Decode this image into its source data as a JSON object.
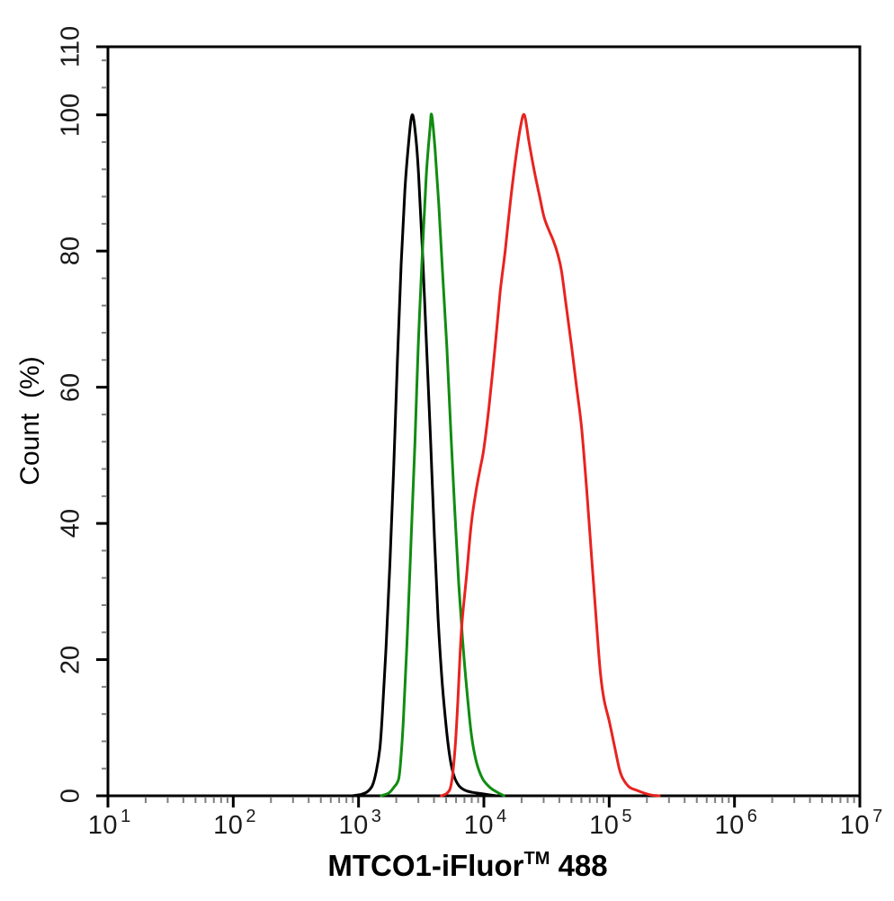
{
  "figure": {
    "background": "#ffffff",
    "axis_color": "#000000",
    "major_tick_color": "#000000",
    "minor_tick_color": "#7f7f7f"
  },
  "x_axis": {
    "title": "MTCO1-iFluor™ 488",
    "title_prefix": "MTCO1-iFluor",
    "title_tm": "TM",
    "title_suffix": " 488",
    "scale": "log10",
    "tick_base": "10",
    "tick_exponents": [
      "1",
      "2",
      "3",
      "4",
      "5",
      "6",
      "7"
    ]
  },
  "y_axis": {
    "title": "Count  (%)",
    "tick_labels": [
      "0",
      "20",
      "40",
      "60",
      "80",
      "100",
      "110"
    ],
    "tick_values": [
      0,
      20,
      40,
      60,
      80,
      100,
      110
    ],
    "minor_step": 4,
    "range": [
      0,
      110
    ]
  },
  "chart_data": {
    "type": "line",
    "title": "",
    "xlabel": "MTCO1-iFluor™ 488",
    "ylabel": "Count  (%)",
    "x_scale": "log10",
    "xlim_log10": [
      1,
      7
    ],
    "ylim": [
      0,
      110
    ],
    "grid": false,
    "legend": "none",
    "y_major_ticks": [
      0,
      20,
      40,
      60,
      80,
      100,
      110
    ],
    "y_minor_step": 4,
    "x_major_ticks_log10": [
      1,
      2,
      3,
      4,
      5,
      6,
      7
    ],
    "series": [
      {
        "name": "black-curve",
        "color": "#000000",
        "peak_x": 2700,
        "peak_y": 100,
        "points_log10x_count": [
          [
            2.95,
            0
          ],
          [
            3.02,
            0.2
          ],
          [
            3.07,
            0.6
          ],
          [
            3.11,
            1.5
          ],
          [
            3.14,
            3.5
          ],
          [
            3.17,
            7
          ],
          [
            3.19,
            12
          ],
          [
            3.22,
            22
          ],
          [
            3.25,
            34
          ],
          [
            3.28,
            48
          ],
          [
            3.31,
            64
          ],
          [
            3.34,
            78
          ],
          [
            3.37,
            89
          ],
          [
            3.4,
            96
          ],
          [
            3.428,
            100
          ],
          [
            3.455,
            97
          ],
          [
            3.48,
            91
          ],
          [
            3.51,
            80
          ],
          [
            3.545,
            65
          ],
          [
            3.575,
            52
          ],
          [
            3.605,
            38
          ],
          [
            3.635,
            26
          ],
          [
            3.668,
            16.5
          ],
          [
            3.7,
            10
          ],
          [
            3.73,
            5.5
          ],
          [
            3.76,
            3
          ],
          [
            3.8,
            1.5
          ],
          [
            3.85,
            0.8
          ],
          [
            3.91,
            0.5
          ],
          [
            3.97,
            0.35
          ],
          [
            4.04,
            0.15
          ],
          [
            4.1,
            0
          ]
        ]
      },
      {
        "name": "green-curve",
        "color": "#118c11",
        "peak_x": 3850,
        "peak_y": 100,
        "points_log10x_count": [
          [
            3.18,
            0
          ],
          [
            3.24,
            0.4
          ],
          [
            3.28,
            1.2
          ],
          [
            3.32,
            2.5
          ],
          [
            3.34,
            6
          ],
          [
            3.36,
            12
          ],
          [
            3.39,
            24
          ],
          [
            3.42,
            38
          ],
          [
            3.45,
            52
          ],
          [
            3.476,
            66
          ],
          [
            3.51,
            80
          ],
          [
            3.54,
            91
          ],
          [
            3.57,
            98
          ],
          [
            3.584,
            100
          ],
          [
            3.61,
            95
          ],
          [
            3.64,
            87
          ],
          [
            3.67,
            77
          ],
          [
            3.704,
            66
          ],
          [
            3.74,
            52
          ],
          [
            3.77,
            41
          ],
          [
            3.8,
            31
          ],
          [
            3.83,
            23
          ],
          [
            3.859,
            16.5
          ],
          [
            3.9,
            9
          ],
          [
            3.94,
            5
          ],
          [
            3.99,
            2.5
          ],
          [
            4.05,
            1.2
          ],
          [
            4.1,
            0.6
          ],
          [
            4.16,
            0
          ]
        ]
      },
      {
        "name": "red-curve",
        "color": "#e8231f",
        "peak_x": 21000,
        "peak_y": 100,
        "points_log10x_count": [
          [
            3.66,
            0
          ],
          [
            3.7,
            0.3
          ],
          [
            3.73,
            1
          ],
          [
            3.75,
            3
          ],
          [
            3.77,
            7
          ],
          [
            3.79,
            13
          ],
          [
            3.82,
            24
          ],
          [
            3.86,
            32
          ],
          [
            3.9,
            40
          ],
          [
            3.94,
            45
          ],
          [
            3.97,
            48
          ],
          [
            4.0,
            51
          ],
          [
            4.04,
            57
          ],
          [
            4.09,
            66
          ],
          [
            4.13,
            74
          ],
          [
            4.17,
            80
          ],
          [
            4.21,
            87
          ],
          [
            4.25,
            93
          ],
          [
            4.29,
            98
          ],
          [
            4.323,
            100
          ],
          [
            4.36,
            96
          ],
          [
            4.4,
            92
          ],
          [
            4.445,
            88
          ],
          [
            4.48,
            85
          ],
          [
            4.52,
            83
          ],
          [
            4.555,
            81.5
          ],
          [
            4.59,
            79.5
          ],
          [
            4.62,
            77
          ],
          [
            4.66,
            71.5
          ],
          [
            4.7,
            66
          ],
          [
            4.74,
            60
          ],
          [
            4.78,
            54
          ],
          [
            4.82,
            45
          ],
          [
            4.86,
            35
          ],
          [
            4.9,
            25
          ],
          [
            4.93,
            18
          ],
          [
            4.96,
            14
          ],
          [
            5.0,
            11
          ],
          [
            5.04,
            7.5
          ],
          [
            5.08,
            4
          ],
          [
            5.11,
            2.5
          ],
          [
            5.16,
            1.3
          ],
          [
            5.22,
            0.8
          ],
          [
            5.28,
            0.4
          ],
          [
            5.34,
            0.1
          ],
          [
            5.4,
            0
          ]
        ]
      }
    ]
  }
}
